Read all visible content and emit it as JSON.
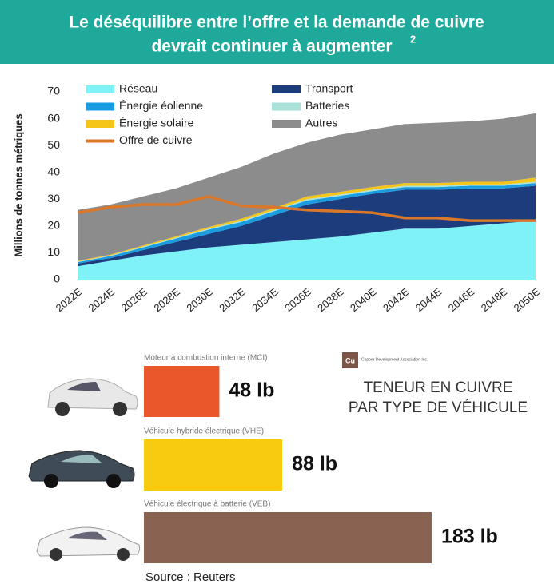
{
  "header": {
    "title_lines": [
      "Le déséquilibre entre l’offre et la demande de cuivre",
      "devrait continuer à augmenter"
    ],
    "footnote_mark": "2"
  },
  "chart_data": [
    {
      "type": "area",
      "stacked": true,
      "ylabel": "Millions de tonnes métriques",
      "categories": [
        "2022E",
        "2024E",
        "2026E",
        "2028E",
        "2030E",
        "2032E",
        "2034E",
        "2036E",
        "2038E",
        "2040E",
        "2042E",
        "2044E",
        "2046E",
        "2048E",
        "2050E"
      ],
      "ylim": [
        0,
        70
      ],
      "yticks": [
        0,
        10,
        20,
        30,
        40,
        50,
        60,
        70
      ],
      "series": [
        {
          "name": "Réseau",
          "color": "#7ff2f7",
          "values": [
            5,
            7,
            9,
            10.5,
            12,
            13,
            14,
            15,
            16,
            17.5,
            19,
            19,
            20,
            21,
            22
          ]
        },
        {
          "name": "Transport",
          "color": "#1d3c7c",
          "values": [
            1,
            1,
            2,
            3.5,
            5,
            7,
            10,
            13,
            14,
            14.5,
            14.5,
            14.5,
            14,
            13,
            13
          ]
        },
        {
          "name": "Énergie éolienne",
          "color": "#1a9de0",
          "values": [
            0.5,
            0.8,
            1,
            1.3,
            1.6,
            1.5,
            1.5,
            1.5,
            1.2,
            1,
            1,
            1,
            1,
            1,
            1
          ]
        },
        {
          "name": "Batteries",
          "color": "#a9e2d9",
          "values": [
            0.2,
            0.2,
            0.3,
            0.3,
            0.4,
            0.4,
            0.4,
            0.5,
            0.5,
            0.5,
            0.5,
            0.5,
            0.5,
            0.5,
            0.5
          ]
        },
        {
          "name": "Énergie solaire",
          "color": "#f6c51a",
          "values": [
            0.3,
            0.3,
            0.4,
            0.5,
            0.6,
            0.8,
            0.8,
            1,
            1,
            1,
            1,
            1,
            1,
            1,
            1.5
          ]
        },
        {
          "name": "Autres",
          "color": "#8c8c8c",
          "values": [
            19,
            18.7,
            18.3,
            17.9,
            18.4,
            19.3,
            20.3,
            20,
            21.3,
            21.5,
            22,
            22.5,
            22.5,
            23.5,
            24
          ]
        },
        {
          "name": "Offre de cuivre",
          "type": "line",
          "color": "#d9772b",
          "values": [
            25,
            27,
            28,
            28,
            31,
            27.5,
            27,
            26,
            25.5,
            25,
            23,
            23,
            22,
            22,
            22
          ]
        }
      ]
    },
    {
      "type": "bar",
      "orientation": "horizontal",
      "categories": [
        "Moteur à combustion interne (MCI)",
        "Véhicule hybride électrique (VHE)",
        "Véhicule électrique à batterie (VEB)"
      ],
      "values": [
        48,
        88,
        183
      ],
      "value_labels": [
        "48 lb",
        "88 lb",
        "183 lb"
      ],
      "colors": [
        "#e8582a",
        "#f9cb10",
        "#8a6252"
      ],
      "annotation": [
        "TENEUR EN CUIVRE",
        "PAR TYPE DE VÉHICULE"
      ]
    }
  ],
  "logo": {
    "symbol": "Cu",
    "text": "Copper Development Association Inc."
  },
  "source": "Source : Reuters"
}
